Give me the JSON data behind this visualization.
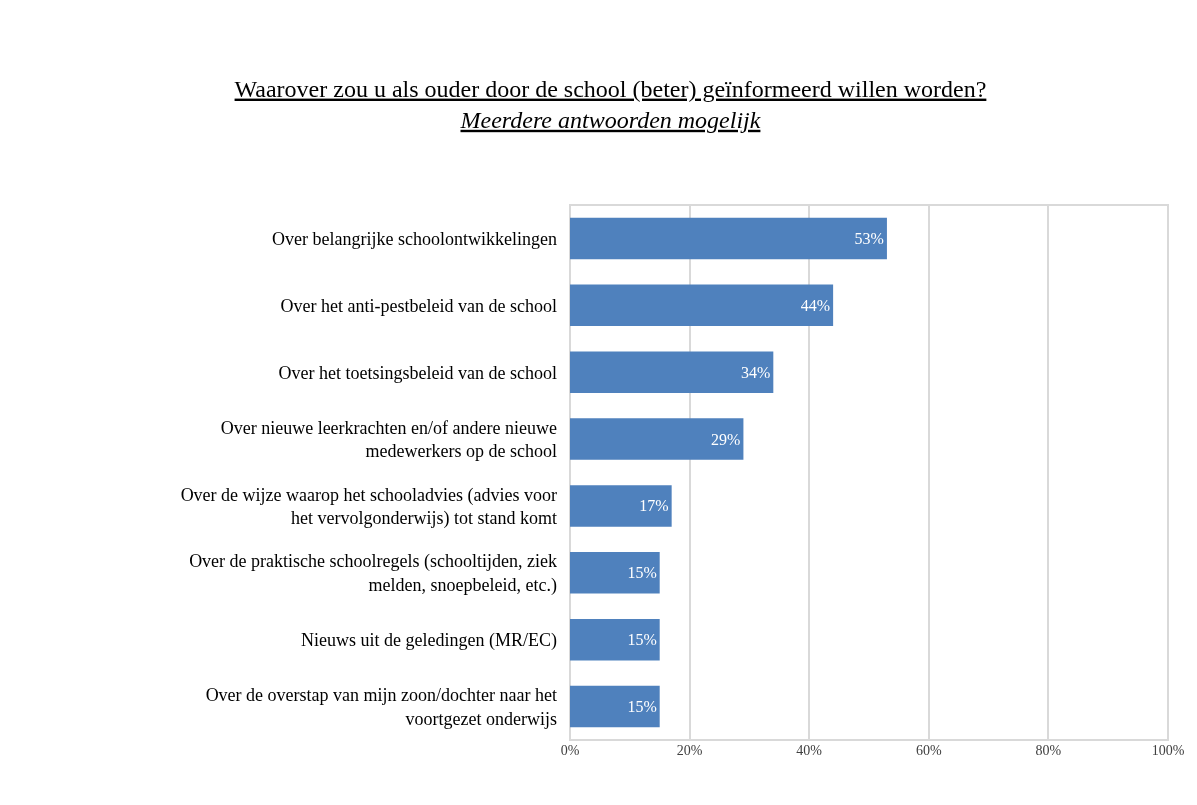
{
  "chart_data": {
    "type": "bar",
    "orientation": "horizontal",
    "title": "Waarover zou u als ouder door de school (beter) geïnformeerd willen worden?",
    "subtitle": "Meerdere antwoorden mogelijk",
    "categories": [
      "Over belangrijke schoolontwikkelingen",
      "Over het anti-pestbeleid van de school",
      "Over het toetsingsbeleid van de school",
      "Over nieuwe leerkrachten en/of andere nieuwe medewerkers op de school",
      "Over de wijze waarop het schooladvies (advies voor het vervolgonderwijs) tot stand komt",
      "Over de praktische schoolregels (schooltijden, ziek melden, snoepbeleid, etc.)",
      "Nieuws uit de geledingen (MR/EC)",
      "Over de overstap van mijn zoon/dochter naar het voortgezet onderwijs"
    ],
    "values": [
      53,
      44,
      34,
      29,
      17,
      15,
      15,
      15
    ],
    "value_labels": [
      "53%",
      "44%",
      "34%",
      "29%",
      "17%",
      "15%",
      "15%",
      "15%"
    ],
    "color": "#4f81bd",
    "xlim": [
      0,
      100
    ],
    "xticks": [
      {
        "value": 0,
        "label": "0%"
      },
      {
        "value": 20,
        "label": "20%"
      },
      {
        "value": 40,
        "label": "40%"
      },
      {
        "value": 60,
        "label": "60%"
      },
      {
        "value": 80,
        "label": "80%"
      },
      {
        "value": 100,
        "label": "100%"
      }
    ],
    "grid": "x",
    "legend": false
  }
}
